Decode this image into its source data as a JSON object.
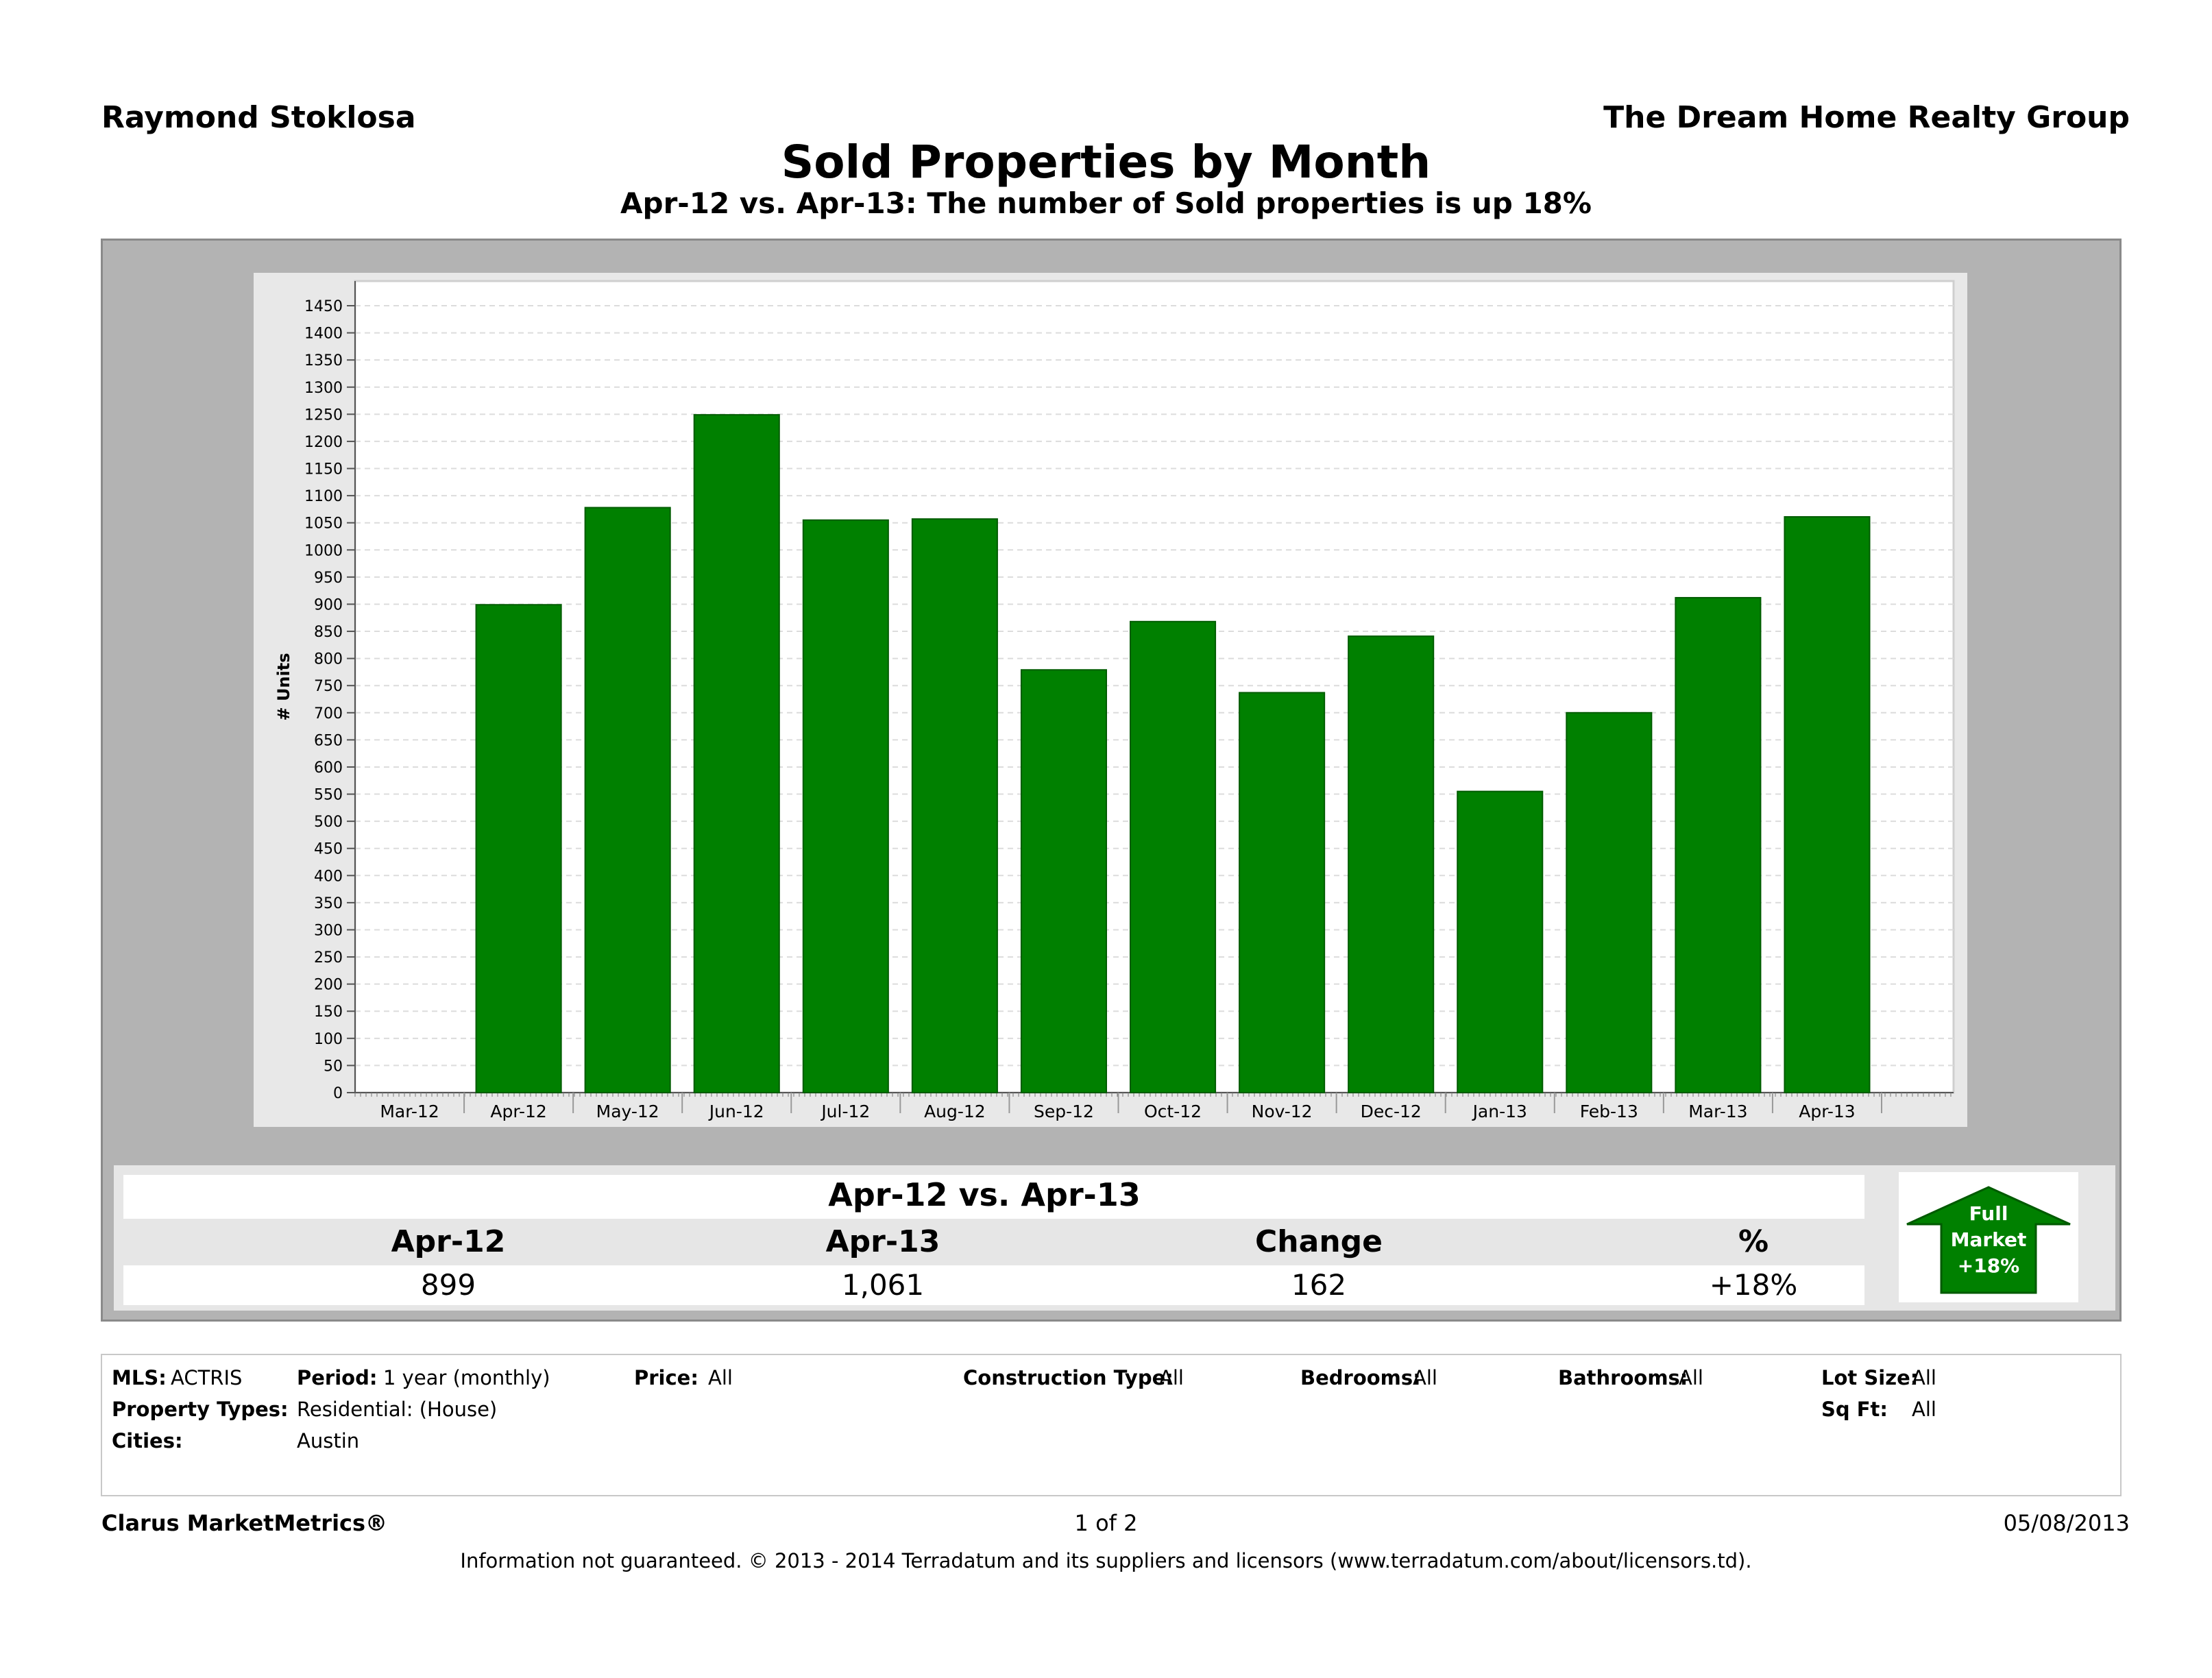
{
  "header": {
    "agent": "Raymond Stoklosa",
    "company": "The Dream Home Realty Group",
    "title": "Sold Properties by Month",
    "subtitle": "Apr-12 vs. Apr-13: The number of Sold properties is up 18%"
  },
  "chart_data": {
    "type": "bar",
    "ylabel": "# Units",
    "ylim": [
      0,
      1450
    ],
    "ytick_step": 50,
    "grid": true,
    "bar_color": "#008000",
    "categories": [
      "Mar-12",
      "Apr-12",
      "May-12",
      "Jun-12",
      "Jul-12",
      "Aug-12",
      "Sep-12",
      "Oct-12",
      "Nov-12",
      "Dec-12",
      "Jan-13",
      "Feb-13",
      "Mar-13",
      "Apr-13"
    ],
    "values": [
      null,
      899,
      1078,
      1249,
      1055,
      1057,
      779,
      868,
      737,
      841,
      555,
      700,
      912,
      1061
    ]
  },
  "summary": {
    "title": "Apr-12 vs. Apr-13",
    "headers": [
      "Apr-12",
      "Apr-13",
      "Change",
      "%"
    ],
    "values": [
      "899",
      "1,061",
      "162",
      "+18%"
    ]
  },
  "badge": {
    "line1": "Full",
    "line2": "Market",
    "line3": "+18%",
    "color": "#008000"
  },
  "criteria": {
    "mls_label": "MLS:",
    "mls_value": "ACTRIS",
    "period_label": "Period:",
    "period_value": "1 year (monthly)",
    "price_label": "Price:",
    "price_value": "All",
    "construction_label": "Construction Type:",
    "construction_value": "All",
    "bedrooms_label": "Bedrooms:",
    "bedrooms_value": "All",
    "bathrooms_label": "Bathrooms:",
    "bathrooms_value": "All",
    "lotsize_label": "Lot Size:",
    "lotsize_value": "All",
    "proptypes_label": "Property Types:",
    "proptypes_value": "Residential: (House)",
    "sqft_label": "Sq Ft:",
    "sqft_value": "All",
    "cities_label": "Cities:",
    "cities_value": "Austin"
  },
  "footer": {
    "brand": "Clarus MarketMetrics®",
    "page": "1 of 2",
    "date": "05/08/2013",
    "disclaimer": "Information not guaranteed.  © 2013 - 2014 Terradatum and its suppliers and licensors (www.terradatum.com/about/licensors.td)."
  }
}
